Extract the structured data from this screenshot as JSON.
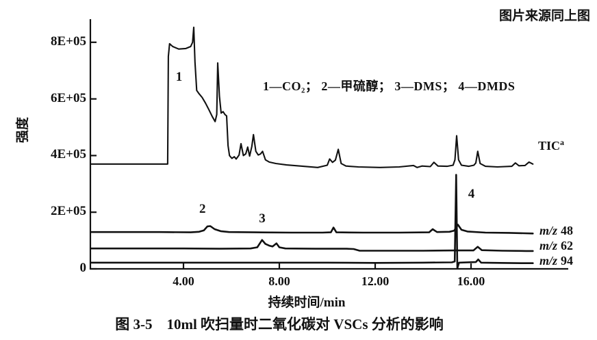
{
  "figure": {
    "source_note": "图片来源同上图",
    "caption": "图 3-5　10ml 吹扫量时二氧化碳对 VSCs 分析的影响",
    "legend": "1—CO₂； 2—甲硫醇； 3—DMS； 4—DMDS"
  },
  "colors": {
    "ink": "#111111",
    "background": "#ffffff"
  },
  "chart_data": {
    "type": "line",
    "title": "",
    "xlabel": "持续时间/min",
    "ylabel": "强度",
    "xlim": [
      0,
      20
    ],
    "ylim": [
      0,
      890000.0
    ],
    "grid": false,
    "legend_position": "upper-center",
    "x_ticks": [
      {
        "t": 4,
        "label": "4.00"
      },
      {
        "t": 8,
        "label": "8.00"
      },
      {
        "t": 12,
        "label": "12.00"
      },
      {
        "t": 16,
        "label": "16.00"
      }
    ],
    "y_ticks": [
      {
        "v": 0,
        "label": "0"
      },
      {
        "v": 200000.0,
        "label": "2E+05"
      },
      {
        "v": 400000.0,
        "label": "4E+05"
      },
      {
        "v": 600000.0,
        "label": "6E+05"
      },
      {
        "v": 800000.0,
        "label": "8E+05"
      }
    ],
    "series": [
      {
        "name": "TIC",
        "label": "TIC",
        "label_sup": "a",
        "points": [
          [
            0.15,
            370000.0
          ],
          [
            1.2,
            370000.0
          ],
          [
            2.4,
            370000.0
          ],
          [
            3.3,
            370000.0
          ],
          [
            3.34,
            370000.0
          ],
          [
            3.37,
            750000.0
          ],
          [
            3.42,
            795000.0
          ],
          [
            3.55,
            785000.0
          ],
          [
            3.8,
            776000.0
          ],
          [
            4.1,
            778000.0
          ],
          [
            4.3,
            785000.0
          ],
          [
            4.38,
            800000.0
          ],
          [
            4.43,
            853000.0
          ],
          [
            4.48,
            730000.0
          ],
          [
            4.55,
            630000.0
          ],
          [
            4.65,
            618000.0
          ],
          [
            4.78,
            605000.0
          ],
          [
            4.92,
            585000.0
          ],
          [
            5.06,
            562000.0
          ],
          [
            5.2,
            538000.0
          ],
          [
            5.32,
            520000.0
          ],
          [
            5.39,
            545000.0
          ],
          [
            5.43,
            727000.0
          ],
          [
            5.5,
            610000.0
          ],
          [
            5.57,
            550000.0
          ],
          [
            5.65,
            555000.0
          ],
          [
            5.73,
            545000.0
          ],
          [
            5.8,
            540000.0
          ],
          [
            5.86,
            435000.0
          ],
          [
            5.92,
            400000.0
          ],
          [
            6.02,
            390000.0
          ],
          [
            6.12,
            396000.0
          ],
          [
            6.2,
            388000.0
          ],
          [
            6.32,
            402000.0
          ],
          [
            6.4,
            442000.0
          ],
          [
            6.5,
            400000.0
          ],
          [
            6.6,
            406000.0
          ],
          [
            6.68,
            430000.0
          ],
          [
            6.76,
            398000.0
          ],
          [
            6.85,
            432000.0
          ],
          [
            6.92,
            474000.0
          ],
          [
            7.02,
            415000.0
          ],
          [
            7.12,
            402000.0
          ],
          [
            7.22,
            406000.0
          ],
          [
            7.3,
            415000.0
          ],
          [
            7.42,
            385000.0
          ],
          [
            7.58,
            377000.0
          ],
          [
            7.85,
            372000.0
          ],
          [
            8.3,
            367000.0
          ],
          [
            9.0,
            362000.0
          ],
          [
            9.6,
            358000.0
          ],
          [
            10.0,
            366000.0
          ],
          [
            10.1,
            388000.0
          ],
          [
            10.22,
            376000.0
          ],
          [
            10.34,
            384000.0
          ],
          [
            10.46,
            422000.0
          ],
          [
            10.58,
            372000.0
          ],
          [
            10.78,
            363000.0
          ],
          [
            11.3,
            360000.0
          ],
          [
            12.2,
            358000.0
          ],
          [
            13.0,
            360000.0
          ],
          [
            13.6,
            365000.0
          ],
          [
            13.75,
            358000.0
          ],
          [
            13.95,
            363000.0
          ],
          [
            14.3,
            361000.0
          ],
          [
            14.45,
            376000.0
          ],
          [
            14.62,
            363000.0
          ],
          [
            15.0,
            362000.0
          ],
          [
            15.25,
            366000.0
          ],
          [
            15.33,
            385000.0
          ],
          [
            15.4,
            470000.0
          ],
          [
            15.48,
            385000.0
          ],
          [
            15.6,
            366000.0
          ],
          [
            15.9,
            362000.0
          ],
          [
            16.12,
            366000.0
          ],
          [
            16.2,
            374000.0
          ],
          [
            16.28,
            415000.0
          ],
          [
            16.38,
            372000.0
          ],
          [
            16.6,
            362000.0
          ],
          [
            17.1,
            360000.0
          ],
          [
            17.7,
            362000.0
          ],
          [
            17.85,
            374000.0
          ],
          [
            18.0,
            364000.0
          ],
          [
            18.25,
            365000.0
          ],
          [
            18.42,
            377000.0
          ],
          [
            18.58,
            370000.0
          ]
        ]
      },
      {
        "name": "m/z 48",
        "label_prefix": "m/z",
        "label_value": "48",
        "points": [
          [
            0.15,
            130000.0
          ],
          [
            1.5,
            130000.0
          ],
          [
            3.0,
            130000.0
          ],
          [
            4.3,
            129000.0
          ],
          [
            4.65,
            131000.0
          ],
          [
            4.85,
            136000.0
          ],
          [
            5.0,
            150000.0
          ],
          [
            5.12,
            151000.0
          ],
          [
            5.3,
            140000.0
          ],
          [
            5.55,
            133000.0
          ],
          [
            5.9,
            130000.0
          ],
          [
            7.0,
            129000.0
          ],
          [
            8.5,
            128000.0
          ],
          [
            9.8,
            128000.0
          ],
          [
            10.15,
            129000.0
          ],
          [
            10.26,
            146000.0
          ],
          [
            10.38,
            129000.0
          ],
          [
            11.5,
            128000.0
          ],
          [
            13.0,
            128000.0
          ],
          [
            14.25,
            129000.0
          ],
          [
            14.4,
            140000.0
          ],
          [
            14.58,
            130000.0
          ],
          [
            15.1,
            131000.0
          ],
          [
            15.3,
            135000.0
          ],
          [
            15.45,
            156000.0
          ],
          [
            15.6,
            138000.0
          ],
          [
            15.85,
            132000.0
          ],
          [
            16.6,
            128000.0
          ],
          [
            17.6,
            127000.0
          ],
          [
            18.58,
            125000.0
          ]
        ]
      },
      {
        "name": "m/z 62",
        "label_prefix": "m/z",
        "label_value": "62",
        "points": [
          [
            0.15,
            72000.0
          ],
          [
            2.0,
            72000.0
          ],
          [
            4.0,
            72000.0
          ],
          [
            5.5,
            71000.0
          ],
          [
            6.8,
            72000.0
          ],
          [
            7.08,
            76000.0
          ],
          [
            7.28,
            102000.0
          ],
          [
            7.42,
            88000.0
          ],
          [
            7.58,
            82000.0
          ],
          [
            7.72,
            79000.0
          ],
          [
            7.88,
            90000.0
          ],
          [
            8.0,
            76000.0
          ],
          [
            8.25,
            72000.0
          ],
          [
            9.5,
            71000.0
          ],
          [
            10.8,
            71000.0
          ],
          [
            11.1,
            70000.0
          ],
          [
            11.35,
            64000.0
          ],
          [
            12.5,
            64000.0
          ],
          [
            14.0,
            64000.0
          ],
          [
            15.3,
            65000.0
          ],
          [
            16.1,
            65000.0
          ],
          [
            16.28,
            78000.0
          ],
          [
            16.45,
            66000.0
          ],
          [
            17.3,
            64000.0
          ],
          [
            18.3,
            63000.0
          ],
          [
            18.58,
            63000.0
          ]
        ]
      },
      {
        "name": "m/z 94",
        "label_prefix": "m/z",
        "label_value": "94",
        "points": [
          [
            0.15,
            22000.0
          ],
          [
            2.0,
            22000.0
          ],
          [
            4.0,
            22000.0
          ],
          [
            6.0,
            22000.0
          ],
          [
            8.0,
            22000.0
          ],
          [
            10.0,
            22000.0
          ],
          [
            12.0,
            21000.0
          ],
          [
            14.0,
            22000.0
          ],
          [
            15.2,
            23000.0
          ],
          [
            15.32,
            26000.0
          ],
          [
            15.38,
            332000.0
          ],
          [
            15.43,
            2000.0
          ],
          [
            15.5,
            22000.0
          ],
          [
            16.2,
            24000.0
          ],
          [
            16.3,
            33000.0
          ],
          [
            16.42,
            22000.0
          ],
          [
            17.2,
            21000.0
          ],
          [
            18.1,
            20000.0
          ],
          [
            18.58,
            20000.0
          ]
        ]
      }
    ],
    "annotations": [
      {
        "label": "1",
        "t": 3.85,
        "v": 675000.0
      },
      {
        "label": "2",
        "t": 4.83,
        "v": 208000.0
      },
      {
        "label": "3",
        "t": 7.32,
        "v": 175000.0
      },
      {
        "label": "4",
        "t": 16.05,
        "v": 260000.0
      }
    ]
  }
}
